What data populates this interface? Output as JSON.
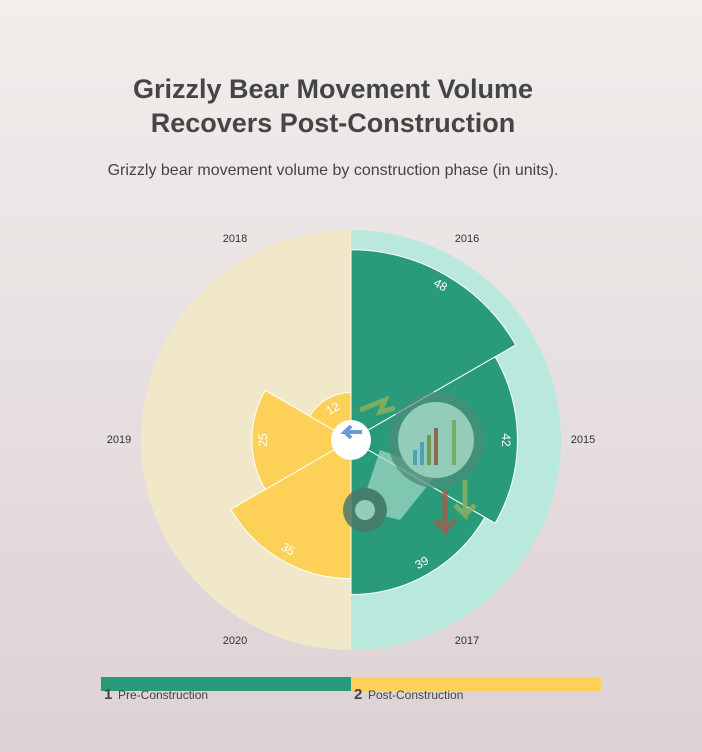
{
  "chart_data": {
    "type": "polar_area",
    "title": [
      "Grizzly Bear Movement Volume",
      "Recovers Post-Construction"
    ],
    "subtitle": "Grizzly bear movement volume by construction phase (in units).",
    "rlim": [
      0,
      53
    ],
    "series": [
      {
        "number": "1",
        "name": "Pre-Construction",
        "color": "#2a9b7a",
        "background": "#b9e8dc",
        "categories": [
          "2016",
          "2015",
          "2017"
        ],
        "values": [
          48,
          42,
          39
        ]
      },
      {
        "number": "2",
        "name": "Post-Construction",
        "color": "#fdd158",
        "background": "#f1e8c9",
        "categories": [
          "2020",
          "2019",
          "2018"
        ],
        "values": [
          35,
          25,
          12
        ]
      }
    ]
  }
}
